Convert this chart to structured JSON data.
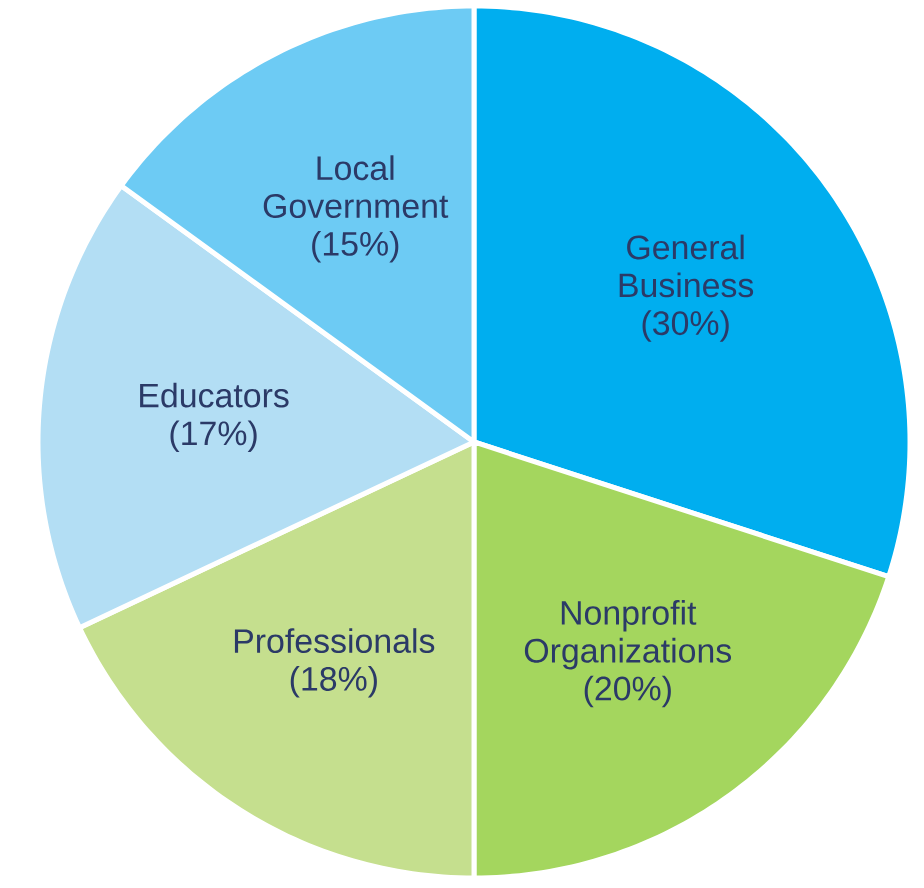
{
  "chart_data": {
    "type": "pie",
    "categories": [
      "General Business",
      "Nonprofit Organizations",
      "Professionals",
      "Educators",
      "Local Government"
    ],
    "values": [
      30,
      20,
      18,
      17,
      15
    ],
    "value_labels": [
      "(30%)",
      "(20%)",
      "(18%)",
      "(17%)",
      "(15%)"
    ],
    "colors": [
      "#00aeef",
      "#a4d65e",
      "#c5df8e",
      "#b3def4",
      "#6dcbf4"
    ]
  }
}
